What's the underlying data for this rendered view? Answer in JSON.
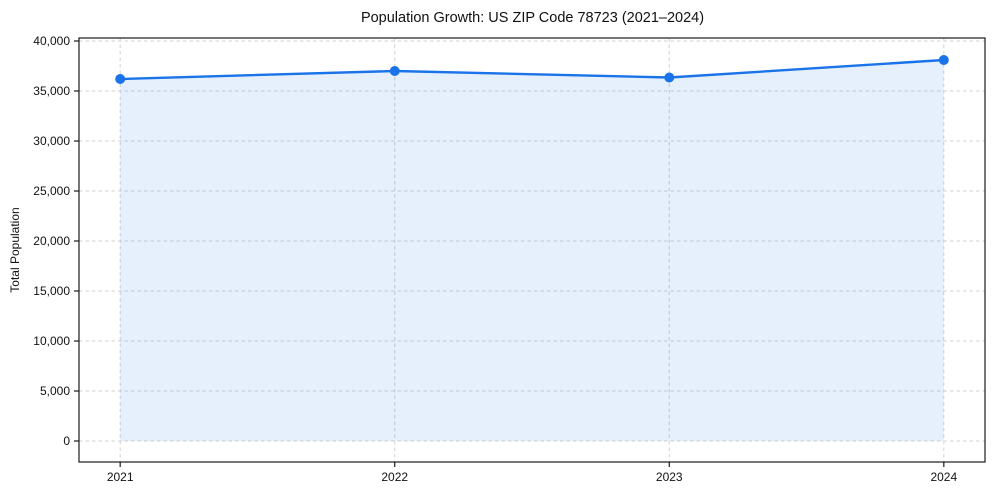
{
  "chart_data": {
    "type": "line",
    "title": "Population Growth: US ZIP Code 78723 (2021–2024)",
    "xlabel": "",
    "ylabel": "Total Population",
    "x": [
      2021,
      2022,
      2023,
      2024
    ],
    "x_tick_labels": [
      "2021",
      "2022",
      "2023",
      "2024"
    ],
    "series": [
      {
        "name": "Total population",
        "values": [
          36200,
          37000,
          36350,
          38100
        ],
        "marker": "circle",
        "area_fill_to": 0
      }
    ],
    "yticks": [
      0,
      5000,
      10000,
      15000,
      20000,
      25000,
      30000,
      35000,
      40000
    ],
    "ylim": [
      -2100,
      40300
    ],
    "xlim": [
      2020.85,
      2024.15
    ],
    "grid": "both-dashed",
    "legend": "none",
    "colors": {
      "line": "#1a73e8",
      "marker": "#1a73e8",
      "area_fill": "rgba(26,115,232,0.11)",
      "gridline": "#d2d2d2",
      "axis": "#1a1a1a",
      "tick_text": "#111111",
      "background": "#ffffff"
    }
  }
}
